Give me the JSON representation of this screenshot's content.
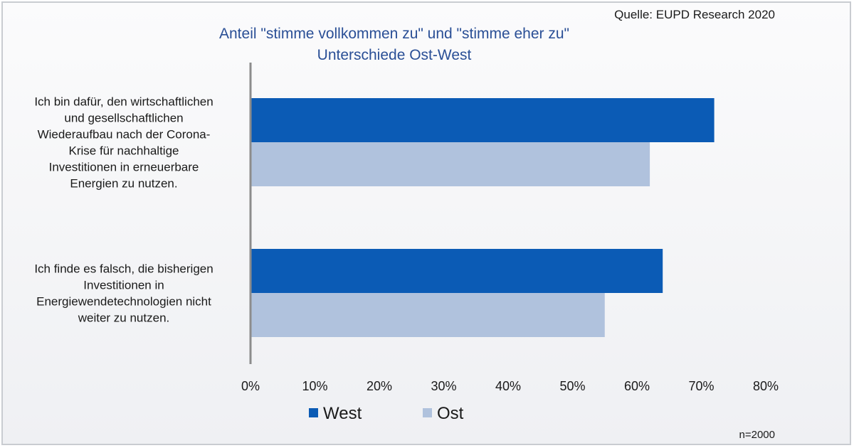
{
  "header": {
    "source": "Quelle: EUPD Research 2020"
  },
  "footer": {
    "note": "n=2000"
  },
  "chart_data": {
    "type": "bar",
    "orientation": "horizontal",
    "title": "Anteil \"stimme vollkommen zu\" und \"stimme eher zu\"",
    "subtitle": "Unterschiede Ost-West",
    "categories": [
      "Ich bin dafür, den wirtschaftlichen und gesellschaftlichen Wiederaufbau nach der Corona-Krise für nachhaltige Investitionen in erneuerbare Energien zu nutzen.",
      "Ich finde es falsch, die bisherigen Investitionen in Energiewendetechnologien nicht weiter zu nutzen."
    ],
    "category_lines": [
      [
        "Ich bin dafür, den wirtschaftlichen",
        "und gesellschaftlichen",
        "Wiederaufbau nach der Corona-",
        "Krise für nachhaltige",
        "Investitionen in erneuerbare",
        "Energien zu nutzen."
      ],
      [
        "Ich finde es falsch, die bisherigen",
        "Investitionen in",
        "Energiewendetechnologien nicht",
        "weiter zu nutzen."
      ]
    ],
    "series": [
      {
        "name": "West",
        "color": "#0b5bb5",
        "values": [
          72,
          64
        ]
      },
      {
        "name": "Ost",
        "color": "#b0c2dd",
        "values": [
          62,
          55
        ]
      }
    ],
    "xlim": [
      0,
      80
    ],
    "xticks": [
      0,
      10,
      20,
      30,
      40,
      50,
      60,
      70,
      80
    ],
    "xtick_labels": [
      "0%",
      "10%",
      "20%",
      "30%",
      "40%",
      "50%",
      "60%",
      "70%",
      "80%"
    ],
    "grid": false,
    "legend_position": "bottom-left"
  }
}
